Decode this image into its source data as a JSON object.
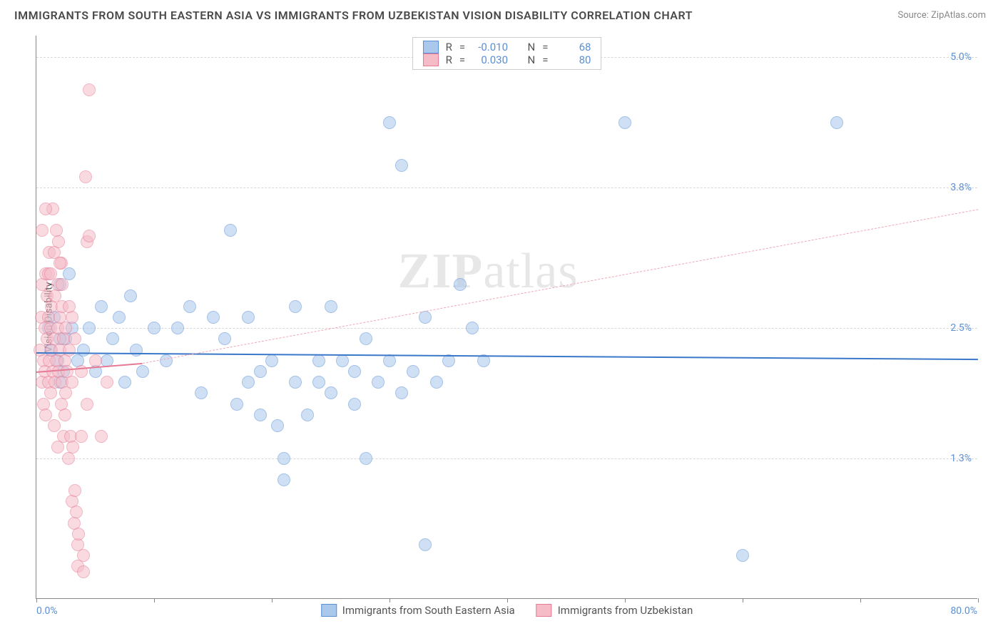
{
  "title": "IMMIGRANTS FROM SOUTH EASTERN ASIA VS IMMIGRANTS FROM UZBEKISTAN VISION DISABILITY CORRELATION CHART",
  "source_label": "Source: ZipAtlas.com",
  "watermark": "ZIPatlas",
  "y_axis_title": "Vision Disability",
  "chart": {
    "type": "scatter",
    "background_color": "#ffffff",
    "grid_color": "#d8d8d8",
    "axis_color": "#888888",
    "xlim": [
      0,
      80
    ],
    "ylim": [
      0,
      5.2
    ],
    "x_ticks": [
      0,
      10,
      20,
      30,
      40,
      50,
      60,
      70,
      80
    ],
    "x_tick_labels": {
      "min": "0.0%",
      "max": "80.0%"
    },
    "y_ticks": [
      1.3,
      2.5,
      3.8,
      5.0
    ],
    "y_tick_labels": [
      "1.3%",
      "2.5%",
      "3.8%",
      "5.0%"
    ],
    "marker_radius": 9,
    "marker_opacity": 0.55,
    "series": [
      {
        "name": "Immigrants from South Eastern Asia",
        "fill_color": "#a9c8ec",
        "stroke_color": "#5b8fd6",
        "R": "-0.010",
        "N": "68",
        "trend": {
          "x1": 0,
          "y1": 2.28,
          "x2": 80,
          "y2": 2.22,
          "color": "#3b78c9",
          "style": "solid",
          "width": 2
        },
        "points": [
          [
            1.0,
            2.5
          ],
          [
            1.2,
            2.3
          ],
          [
            1.5,
            2.6
          ],
          [
            1.8,
            2.2
          ],
          [
            2.0,
            2.9
          ],
          [
            2.3,
            2.1
          ],
          [
            2.5,
            2.4
          ],
          [
            2.8,
            3.0
          ],
          [
            2.0,
            2.4
          ],
          [
            4.0,
            2.3
          ],
          [
            4.5,
            2.5
          ],
          [
            5.0,
            2.1
          ],
          [
            5.5,
            2.7
          ],
          [
            6.0,
            2.2
          ],
          [
            6.5,
            2.4
          ],
          [
            7.0,
            2.6
          ],
          [
            7.5,
            2.0
          ],
          [
            8.0,
            2.8
          ],
          [
            8.5,
            2.3
          ],
          [
            9.0,
            2.1
          ],
          [
            10.0,
            2.5
          ],
          [
            11.0,
            2.2
          ],
          [
            12.0,
            2.5
          ],
          [
            13.0,
            2.7
          ],
          [
            14.0,
            1.9
          ],
          [
            15.0,
            2.6
          ],
          [
            16.0,
            2.4
          ],
          [
            16.5,
            3.4
          ],
          [
            17.0,
            1.8
          ],
          [
            18.0,
            2.0
          ],
          [
            18.0,
            2.6
          ],
          [
            19.0,
            2.1
          ],
          [
            19.0,
            1.7
          ],
          [
            20.0,
            2.2
          ],
          [
            20.5,
            1.6
          ],
          [
            21.0,
            1.1
          ],
          [
            21.0,
            1.3
          ],
          [
            22.0,
            2.0
          ],
          [
            22.0,
            2.7
          ],
          [
            23.0,
            1.7
          ],
          [
            24.0,
            2.2
          ],
          [
            24.0,
            2.0
          ],
          [
            25.0,
            1.9
          ],
          [
            25.0,
            2.7
          ],
          [
            26.0,
            2.2
          ],
          [
            27.0,
            2.1
          ],
          [
            27.0,
            1.8
          ],
          [
            28.0,
            1.3
          ],
          [
            28.0,
            2.4
          ],
          [
            29.0,
            2.0
          ],
          [
            30.0,
            4.4
          ],
          [
            30.0,
            2.2
          ],
          [
            31.0,
            4.0
          ],
          [
            31.0,
            1.9
          ],
          [
            32.0,
            2.1
          ],
          [
            33.0,
            2.6
          ],
          [
            33.0,
            0.5
          ],
          [
            34.0,
            2.0
          ],
          [
            35.0,
            2.2
          ],
          [
            36.0,
            2.9
          ],
          [
            37.0,
            2.5
          ],
          [
            38.0,
            2.2
          ],
          [
            50.0,
            4.4
          ],
          [
            60.0,
            0.4
          ],
          [
            68.0,
            4.4
          ],
          [
            2.0,
            2.0
          ],
          [
            3.0,
            2.5
          ],
          [
            3.5,
            2.2
          ]
        ]
      },
      {
        "name": "Immigrants from Uzbekistan",
        "fill_color": "#f5bcc8",
        "stroke_color": "#e67a94",
        "R": "0.030",
        "N": "80",
        "trend": {
          "x1": 0,
          "y1": 2.1,
          "x2": 9,
          "y2": 2.18,
          "color": "#e67a94",
          "style": "solid",
          "width": 2
        },
        "trend_ext": {
          "x1": 9,
          "y1": 2.18,
          "x2": 80,
          "y2": 3.6,
          "color": "#f0a8b6",
          "style": "dashed",
          "width": 1.5
        },
        "points": [
          [
            0.3,
            2.3
          ],
          [
            0.4,
            2.6
          ],
          [
            0.5,
            2.0
          ],
          [
            0.5,
            2.9
          ],
          [
            0.6,
            2.2
          ],
          [
            0.6,
            1.8
          ],
          [
            0.7,
            2.5
          ],
          [
            0.7,
            2.1
          ],
          [
            0.8,
            3.0
          ],
          [
            0.8,
            1.7
          ],
          [
            0.9,
            2.4
          ],
          [
            0.9,
            2.8
          ],
          [
            1.0,
            2.0
          ],
          [
            1.0,
            2.6
          ],
          [
            1.1,
            2.2
          ],
          [
            1.1,
            3.2
          ],
          [
            1.2,
            2.5
          ],
          [
            1.2,
            1.9
          ],
          [
            1.3,
            2.3
          ],
          [
            1.3,
            2.7
          ],
          [
            1.4,
            2.1
          ],
          [
            1.4,
            3.6
          ],
          [
            1.5,
            2.4
          ],
          [
            1.5,
            1.6
          ],
          [
            1.6,
            2.0
          ],
          [
            1.6,
            2.8
          ],
          [
            1.7,
            2.2
          ],
          [
            1.7,
            3.4
          ],
          [
            1.8,
            2.5
          ],
          [
            1.8,
            1.4
          ],
          [
            1.9,
            2.1
          ],
          [
            1.9,
            3.3
          ],
          [
            2.0,
            2.3
          ],
          [
            2.0,
            2.6
          ],
          [
            2.1,
            1.8
          ],
          [
            2.1,
            3.1
          ],
          [
            2.2,
            2.0
          ],
          [
            2.2,
            2.7
          ],
          [
            2.3,
            1.5
          ],
          [
            2.3,
            2.4
          ],
          [
            2.4,
            2.2
          ],
          [
            2.4,
            1.7
          ],
          [
            2.5,
            2.5
          ],
          [
            2.5,
            1.9
          ],
          [
            2.6,
            2.1
          ],
          [
            2.7,
            1.3
          ],
          [
            2.8,
            2.3
          ],
          [
            2.9,
            1.5
          ],
          [
            3.0,
            2.0
          ],
          [
            3.0,
            0.9
          ],
          [
            3.1,
            1.4
          ],
          [
            3.2,
            0.7
          ],
          [
            3.3,
            1.0
          ],
          [
            3.4,
            0.8
          ],
          [
            3.5,
            0.5
          ],
          [
            3.5,
            0.3
          ],
          [
            3.6,
            0.6
          ],
          [
            3.8,
            1.5
          ],
          [
            4.0,
            0.4
          ],
          [
            4.0,
            0.25
          ],
          [
            4.2,
            3.9
          ],
          [
            4.3,
            3.3
          ],
          [
            4.5,
            4.7
          ],
          [
            4.5,
            3.35
          ],
          [
            5.0,
            2.2
          ],
          [
            5.5,
            1.5
          ],
          [
            6.0,
            2.0
          ],
          [
            3.0,
            2.6
          ],
          [
            1.0,
            3.0
          ],
          [
            1.5,
            3.2
          ],
          [
            2.0,
            3.1
          ],
          [
            0.5,
            3.4
          ],
          [
            0.8,
            3.6
          ],
          [
            1.2,
            3.0
          ],
          [
            1.8,
            2.9
          ],
          [
            2.2,
            2.9
          ],
          [
            2.8,
            2.7
          ],
          [
            3.3,
            2.4
          ],
          [
            3.8,
            2.1
          ],
          [
            4.3,
            1.8
          ]
        ]
      }
    ]
  },
  "legend_stats_labels": {
    "R": "R",
    "N": "N",
    "eq": "="
  },
  "bottom_legend": [
    {
      "label": "Immigrants from South Eastern Asia",
      "fill": "#a9c8ec",
      "stroke": "#5b8fd6"
    },
    {
      "label": "Immigrants from Uzbekistan",
      "fill": "#f5bcc8",
      "stroke": "#e67a94"
    }
  ]
}
